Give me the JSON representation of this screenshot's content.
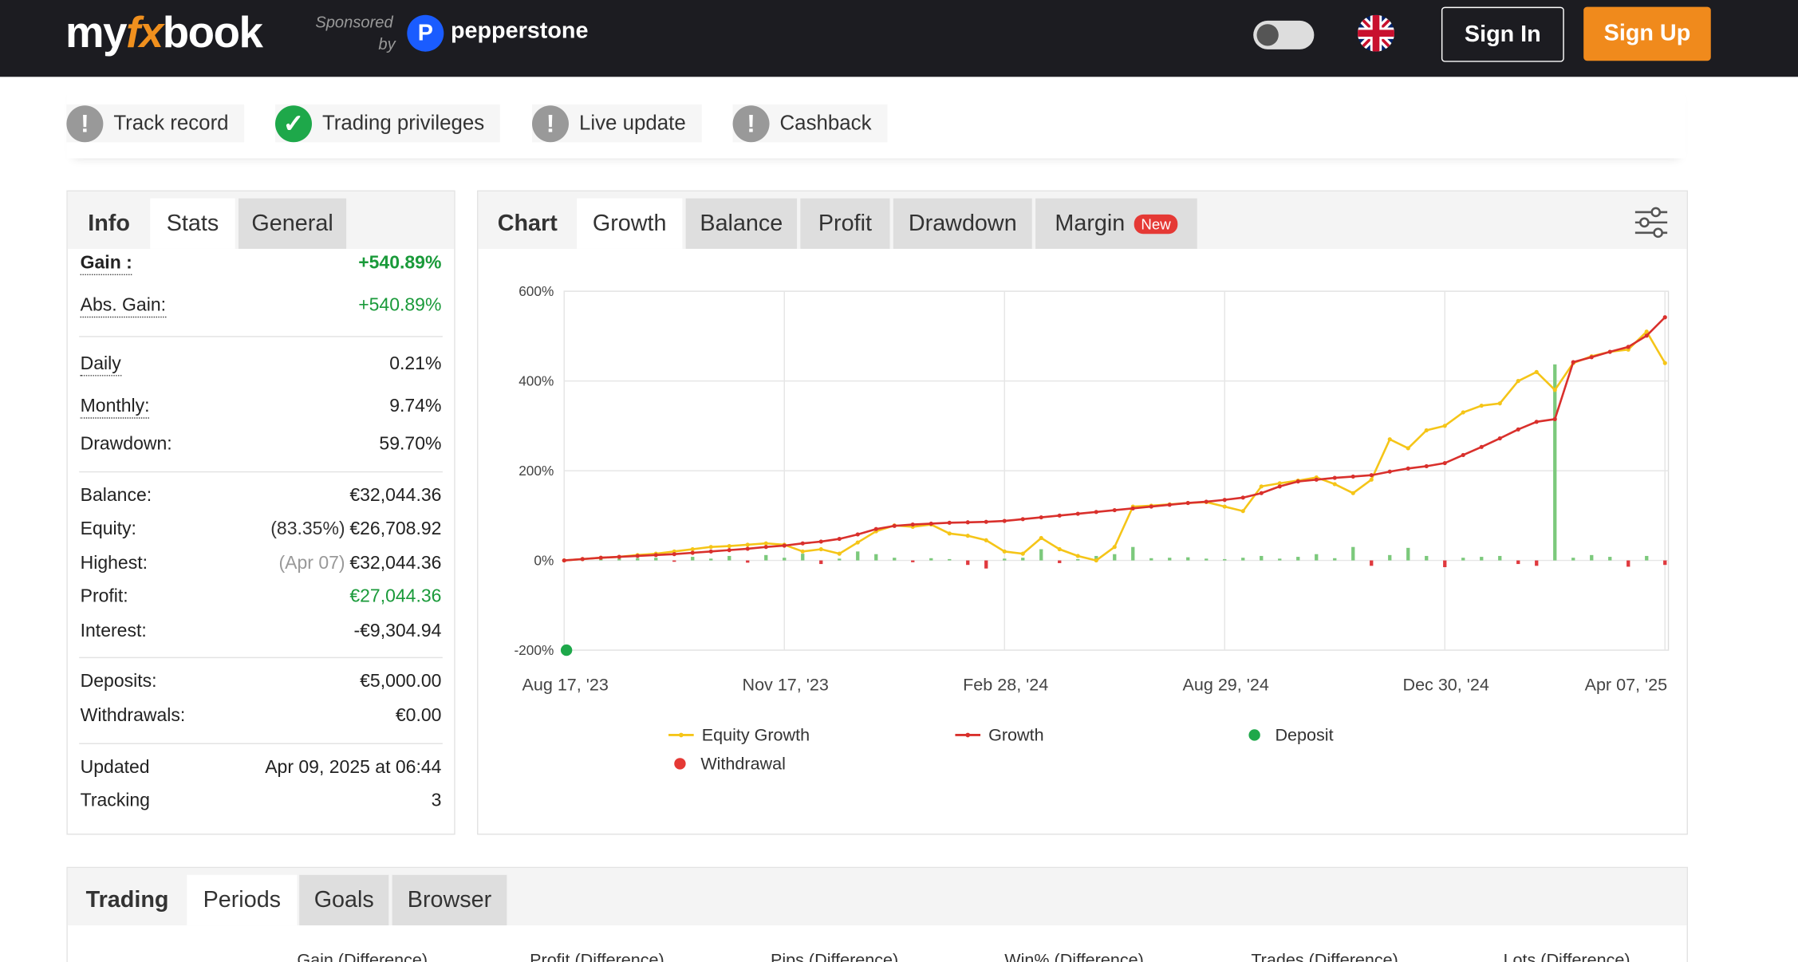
{
  "header": {
    "logo": [
      "my",
      "fx",
      "book"
    ],
    "sponsored": "Sponsored",
    "by": "by",
    "sponsor": "pepperstone",
    "sign_in": "Sign In",
    "sign_up": "Sign Up"
  },
  "badges": [
    {
      "label": "Track record",
      "status": "warn"
    },
    {
      "label": "Trading privileges",
      "status": "ok"
    },
    {
      "label": "Live update",
      "status": "warn"
    },
    {
      "label": "Cashback",
      "status": "warn"
    }
  ],
  "stats": {
    "tabs": [
      "Info",
      "Stats",
      "General"
    ],
    "groups": [
      [
        {
          "label": "Gain :",
          "value": "+540.89%",
          "color": "#1a9a3a",
          "bold": true
        },
        {
          "label": "Abs. Gain:",
          "value": "+540.89%",
          "color": "#1a9a3a"
        }
      ],
      [
        {
          "label": "Daily",
          "value": "0.21%"
        },
        {
          "label": "Monthly:",
          "value": "9.74%"
        },
        {
          "label": "Drawdown:",
          "value": "59.70%"
        }
      ],
      [
        {
          "label": "Balance:",
          "value": "€32,044.36"
        },
        {
          "label": "Equity:",
          "note": "(83.35%)",
          "value": "€26,708.92"
        },
        {
          "label": "Highest:",
          "note": "(Apr 07)",
          "value": "€32,044.36"
        },
        {
          "label": "Profit:",
          "value": "€27,044.36",
          "color": "#1a9a3a"
        },
        {
          "label": "Interest:",
          "value": "-€9,304.94"
        }
      ],
      [
        {
          "label": "Deposits:",
          "value": "€5,000.00"
        },
        {
          "label": "Withdrawals:",
          "value": "€0.00"
        }
      ],
      [
        {
          "label": "Updated",
          "value": "Apr 09, 2025 at 06:44"
        },
        {
          "label": "Tracking",
          "value": "3"
        }
      ]
    ]
  },
  "chart_tabs": {
    "tabs": [
      "Chart",
      "Growth",
      "Balance",
      "Profit",
      "Drawdown",
      "Margin"
    ],
    "new_badge": "New"
  },
  "chart_data": {
    "type": "line",
    "categories": [
      "Aug 17, '23",
      null,
      null,
      null,
      null,
      null,
      null,
      null,
      null,
      null,
      null,
      null,
      "Nov 17, '23",
      null,
      null,
      null,
      null,
      null,
      null,
      null,
      null,
      null,
      null,
      null,
      "Feb 28, '24",
      null,
      null,
      null,
      null,
      null,
      null,
      null,
      null,
      null,
      null,
      null,
      "Aug 29, '24",
      null,
      null,
      null,
      null,
      null,
      null,
      null,
      null,
      null,
      null,
      null,
      "Dec 30, '24",
      null,
      null,
      null,
      null,
      null,
      null,
      null,
      null,
      null,
      null,
      null,
      "Apr 07, '25"
    ],
    "series": [
      {
        "name": "Equity Growth",
        "color": "#f5c518",
        "values": [
          0,
          3,
          6,
          8,
          12,
          15,
          20,
          25,
          30,
          32,
          35,
          38,
          35,
          20,
          25,
          15,
          40,
          65,
          78,
          75,
          80,
          60,
          55,
          45,
          20,
          15,
          50,
          25,
          10,
          0,
          30,
          120,
          122,
          125,
          128,
          130,
          120,
          110,
          165,
          172,
          178,
          185,
          170,
          150,
          180,
          270,
          250,
          290,
          300,
          330,
          345,
          350,
          400,
          420,
          380,
          440,
          455,
          465,
          470,
          510,
          440
        ]
      },
      {
        "name": "Growth",
        "color": "#d9302c",
        "values": [
          0,
          3,
          6,
          8,
          10,
          12,
          14,
          17,
          20,
          23,
          26,
          30,
          33,
          38,
          42,
          48,
          58,
          70,
          77,
          80,
          82,
          84,
          85,
          86,
          88,
          92,
          96,
          100,
          104,
          108,
          112,
          116,
          120,
          124,
          128,
          131,
          135,
          140,
          150,
          165,
          176,
          180,
          184,
          187,
          190,
          198,
          205,
          210,
          217,
          235,
          253,
          272,
          292,
          309,
          315,
          442,
          453,
          465,
          476,
          501,
          542
        ]
      },
      {
        "name": "Deposit",
        "color": "#1ea84a",
        "marker": "dot",
        "values": [
          -200,
          null,
          null,
          null,
          null,
          null,
          null,
          null,
          null,
          null,
          null,
          null,
          null,
          null,
          null,
          null,
          null,
          null,
          null,
          null,
          null,
          null,
          null,
          null,
          null,
          null,
          null,
          null,
          null,
          null,
          null,
          null,
          null,
          null,
          null,
          null,
          null,
          null,
          null,
          null,
          null,
          null,
          null,
          null,
          null,
          null,
          null,
          null,
          null,
          null,
          null,
          null,
          null,
          null,
          null,
          null,
          null,
          null,
          null,
          null,
          null
        ]
      },
      {
        "name": "Withdrawal",
        "color": "#e53935",
        "marker": "dot",
        "values": [
          null,
          null,
          null,
          null,
          null,
          null,
          null,
          null,
          null,
          null,
          null,
          null,
          null,
          null,
          null,
          null,
          null,
          null,
          null,
          null,
          null,
          null,
          null,
          null,
          null,
          null,
          null,
          null,
          null,
          null,
          null,
          null,
          null,
          null,
          null,
          null,
          null,
          null,
          null,
          null,
          null,
          null,
          null,
          null,
          null,
          null,
          null,
          null,
          null,
          null,
          null,
          null,
          null,
          null,
          null,
          null,
          null,
          null,
          null,
          null,
          null
        ]
      }
    ],
    "bars": {
      "positive_color": "#7cc97c",
      "negative_color": "#e0393e",
      "values": [
        0,
        2,
        3,
        4,
        5,
        6,
        -3,
        8,
        4,
        10,
        -5,
        12,
        6,
        15,
        -8,
        4,
        20,
        14,
        6,
        -4,
        5,
        3,
        -10,
        -18,
        4,
        6,
        25,
        -6,
        3,
        10,
        14,
        30,
        5,
        6,
        7,
        4,
        3,
        6,
        10,
        4,
        8,
        14,
        5,
        30,
        -12,
        12,
        28,
        10,
        -15,
        6,
        8,
        10,
        -8,
        -12,
        437,
        6,
        12,
        8,
        -14,
        10,
        -10
      ]
    },
    "ylim": [
      -200,
      600
    ],
    "yticks": [
      {
        "value": -200,
        "label": "-200%"
      },
      {
        "value": 0,
        "label": "0%"
      },
      {
        "value": 200,
        "label": "200%"
      },
      {
        "value": 400,
        "label": "400%"
      },
      {
        "value": 600,
        "label": "600%"
      }
    ],
    "grid": true
  },
  "bottom": {
    "tabs": [
      "Trading",
      "Periods",
      "Goals",
      "Browser"
    ],
    "columns": [
      "Gain (Difference)",
      "Profit (Difference)",
      "Pips (Difference)",
      "Win% (Difference)",
      "Trades (Difference)",
      "Lots (Difference)"
    ]
  }
}
